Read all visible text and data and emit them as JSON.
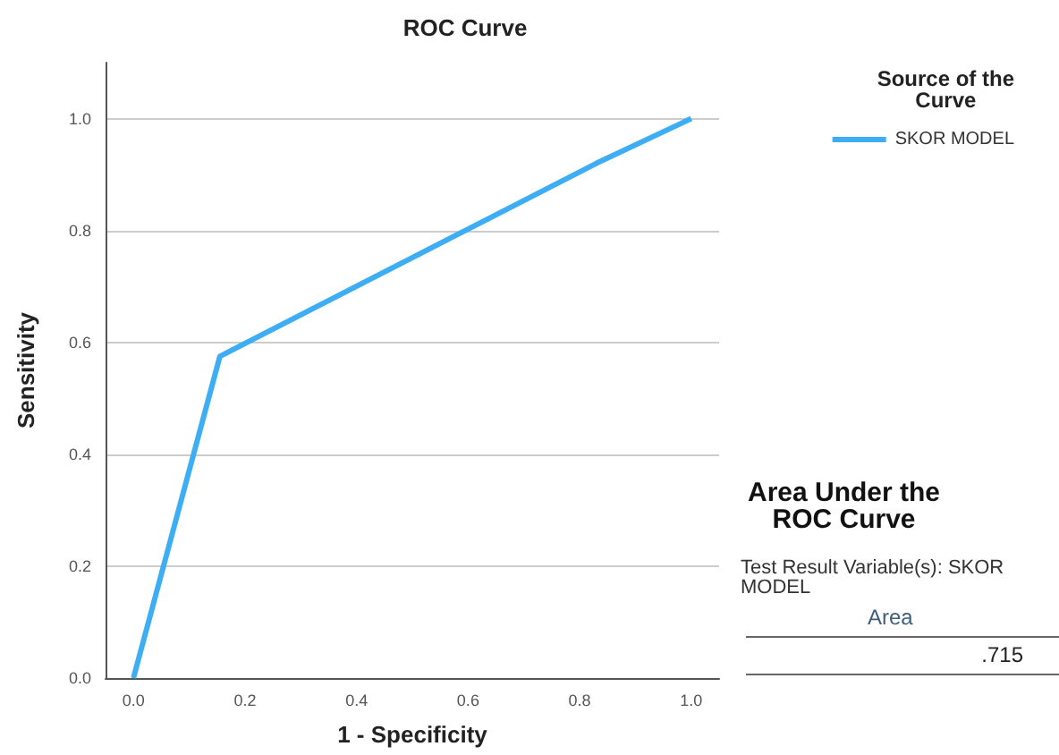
{
  "chart_data": {
    "type": "line",
    "title": "ROC Curve",
    "xlabel": "1 - Specificity",
    "ylabel": "Sensitivity",
    "legend_title": "Source of the Curve",
    "x": [
      0,
      0.155,
      0.83,
      1
    ],
    "series": [
      {
        "name": "SKOR MODEL",
        "color": "#3eaef4",
        "values": [
          0,
          0.575,
          0.92,
          1
        ]
      }
    ],
    "xlim": [
      -0.05,
      1.05
    ],
    "xticks": [
      {
        "value": 0,
        "label": "0.0"
      },
      0.2,
      0.4,
      0.6,
      0.8,
      {
        "value": 1,
        "label": "1.0"
      }
    ],
    "ylim": [
      0,
      1.1
    ],
    "yticks": [
      {
        "value": 0,
        "label": "0.0"
      },
      0.2,
      0.4,
      0.6,
      0.8,
      {
        "value": 1,
        "label": "1.0"
      }
    ],
    "grid": "y",
    "legend": "top right",
    "marker": "none",
    "line_style": "solid",
    "annotations": [
      "Area Under the ROC Curve",
      "Test Result Variable(s): SKOR MODEL",
      "Area",
      ".715"
    ]
  }
}
